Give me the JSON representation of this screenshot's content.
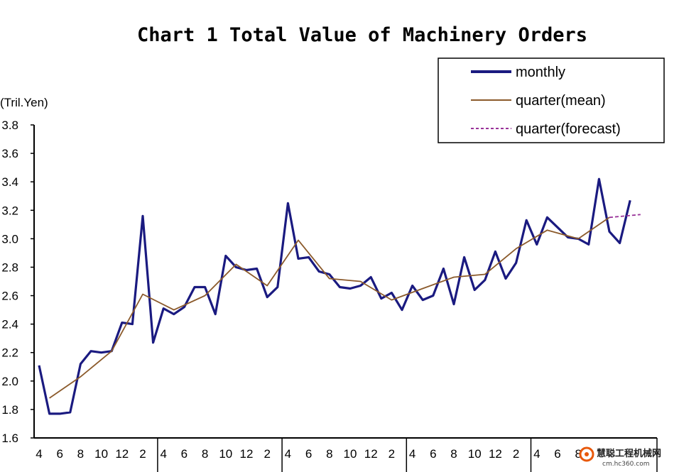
{
  "chart_data": {
    "type": "line",
    "title": "Chart 1 Total Value of Machinery Orders",
    "ylabel": "(Tril.Yen)",
    "ylim": [
      1.6,
      3.8
    ],
    "yticks": [
      "1.6",
      "1.8",
      "2.0",
      "2.2",
      "2.4",
      "2.6",
      "2.8",
      "3.0",
      "3.2",
      "3.4",
      "3.6",
      "3.8"
    ],
    "xticks": [
      "4",
      "6",
      "8",
      "10",
      "12",
      "2",
      "4",
      "6",
      "8",
      "10",
      "12",
      "2",
      "4",
      "6",
      "8",
      "10",
      "12",
      "2",
      "4",
      "6",
      "8",
      "10",
      "12",
      "2",
      "4",
      "6",
      "8"
    ],
    "x_count": 60,
    "grid": false,
    "legend_position": "top-right",
    "series": [
      {
        "name": "monthly",
        "color": "#1a1a80",
        "style": "solid-thick",
        "x": [
          0,
          1,
          2,
          3,
          4,
          5,
          6,
          7,
          8,
          9,
          10,
          11,
          12,
          13,
          14,
          15,
          16,
          17,
          18,
          19,
          20,
          21,
          22,
          23,
          24,
          25,
          26,
          27,
          28,
          29,
          30,
          31,
          32,
          33,
          34,
          35,
          36,
          37,
          38,
          39,
          40,
          41,
          42,
          43,
          44,
          45,
          46,
          47,
          48,
          49,
          50,
          51,
          52,
          53,
          54,
          55,
          56,
          57
        ],
        "values": [
          2.11,
          1.77,
          1.77,
          1.78,
          2.12,
          2.21,
          2.2,
          2.21,
          2.41,
          2.4,
          3.16,
          2.27,
          2.51,
          2.47,
          2.52,
          2.66,
          2.66,
          2.47,
          2.88,
          2.8,
          2.78,
          2.79,
          2.59,
          2.66,
          3.25,
          2.86,
          2.87,
          2.77,
          2.75,
          2.66,
          2.65,
          2.67,
          2.73,
          2.58,
          2.62,
          2.5,
          2.67,
          2.57,
          2.6,
          2.79,
          2.54,
          2.87,
          2.64,
          2.71,
          2.91,
          2.72,
          2.83,
          3.13,
          2.96,
          3.15,
          3.08,
          3.01,
          3.0,
          2.96,
          3.42,
          3.05,
          2.97,
          3.27
        ]
      },
      {
        "name": "quarter(mean)",
        "color": "#8b5a2b",
        "style": "solid-thin",
        "x": [
          1,
          4,
          7,
          10,
          13,
          16,
          19,
          22,
          25,
          28,
          31,
          34,
          37,
          40,
          43,
          46,
          49,
          52,
          55
        ],
        "values": [
          1.88,
          2.03,
          2.21,
          2.61,
          2.5,
          2.6,
          2.82,
          2.67,
          2.99,
          2.72,
          2.7,
          2.57,
          2.65,
          2.73,
          2.75,
          2.93,
          3.06,
          3.0,
          3.15
        ]
      },
      {
        "name": "quarter(forecast)",
        "color": "#993399",
        "style": "dashed",
        "x": [
          55,
          58
        ],
        "values": [
          3.15,
          3.17
        ]
      }
    ]
  },
  "watermark": {
    "text": "慧聪工程机械网",
    "sub": "cm.hc360.com"
  }
}
